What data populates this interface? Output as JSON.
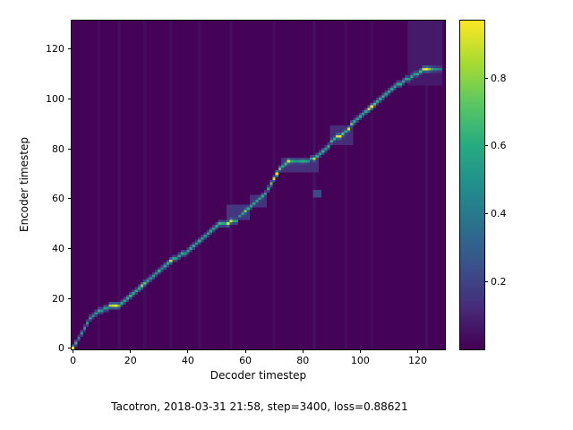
{
  "figure": {
    "background": "#ffffff",
    "caption": "Tacotron, 2018-03-31 21:58, step=3400, loss=0.88621"
  },
  "chart_data": {
    "type": "heatmap",
    "title": "",
    "xlabel": "Decoder timestep",
    "ylabel": "Encoder timestep",
    "x_ticks": [
      0,
      20,
      40,
      60,
      80,
      100,
      120
    ],
    "y_ticks": [
      0,
      20,
      40,
      60,
      80,
      100,
      120
    ],
    "x_range": [
      0,
      129
    ],
    "y_range": [
      0,
      131
    ],
    "grid_cols": 130,
    "grid_rows": 132,
    "value_range": [
      0,
      0.97
    ],
    "colorbar_ticks": [
      0.2,
      0.4,
      0.6,
      0.8
    ],
    "colormap": "viridis",
    "colormap_anchors": [
      "#440154",
      "#472c7a",
      "#3b518b",
      "#2c718e",
      "#21908d",
      "#27ad81",
      "#5cc863",
      "#aadc32",
      "#fde725"
    ],
    "background_value": 0.005,
    "column_streaks": [
      [
        9,
        0.03
      ],
      [
        16,
        0.04
      ],
      [
        25,
        0.03
      ],
      [
        34,
        0.03
      ],
      [
        44,
        0.03
      ],
      [
        55,
        0.04
      ],
      [
        70,
        0.03
      ],
      [
        84,
        0.05
      ],
      [
        95,
        0.03
      ],
      [
        104,
        0.03
      ],
      [
        123,
        0.04
      ]
    ],
    "patches": [
      {
        "x": 117,
        "y": 106,
        "w": 12,
        "h": 26,
        "v": 0.07
      },
      {
        "x": 54,
        "y": 52,
        "w": 8,
        "h": 6,
        "v": 0.16
      },
      {
        "x": 62,
        "y": 57,
        "w": 6,
        "h": 5,
        "v": 0.14
      },
      {
        "x": 84,
        "y": 61,
        "w": 3,
        "h": 3,
        "v": 0.22
      },
      {
        "x": 73,
        "y": 71,
        "w": 13,
        "h": 6,
        "v": 0.13
      },
      {
        "x": 90,
        "y": 82,
        "w": 8,
        "h": 8,
        "v": 0.12
      }
    ],
    "alignment_path": [
      [
        0,
        0,
        0.97
      ],
      [
        1,
        2,
        0.6
      ],
      [
        2,
        4,
        0.45
      ],
      [
        3,
        6,
        0.5
      ],
      [
        4,
        8,
        0.5
      ],
      [
        5,
        10,
        0.55
      ],
      [
        6,
        12,
        0.5
      ],
      [
        7,
        13,
        0.45
      ],
      [
        8,
        14,
        0.5
      ],
      [
        9,
        15,
        0.6
      ],
      [
        10,
        15,
        0.5
      ],
      [
        11,
        16,
        0.55
      ],
      [
        12,
        16,
        0.5
      ],
      [
        13,
        17,
        0.85
      ],
      [
        14,
        17,
        0.9
      ],
      [
        15,
        17,
        0.95
      ],
      [
        16,
        17,
        0.7
      ],
      [
        17,
        18,
        0.6
      ],
      [
        18,
        19,
        0.55
      ],
      [
        19,
        20,
        0.6
      ],
      [
        20,
        21,
        0.65
      ],
      [
        21,
        22,
        0.6
      ],
      [
        22,
        23,
        0.55
      ],
      [
        23,
        24,
        0.6
      ],
      [
        24,
        25,
        0.8
      ],
      [
        25,
        26,
        0.7
      ],
      [
        26,
        27,
        0.55
      ],
      [
        27,
        28,
        0.5
      ],
      [
        28,
        29,
        0.55
      ],
      [
        29,
        30,
        0.5
      ],
      [
        30,
        31,
        0.6
      ],
      [
        31,
        32,
        0.5
      ],
      [
        32,
        33,
        0.55
      ],
      [
        33,
        34,
        0.6
      ],
      [
        34,
        35,
        0.9
      ],
      [
        35,
        36,
        0.6
      ],
      [
        36,
        36,
        0.5
      ],
      [
        37,
        37,
        0.55
      ],
      [
        38,
        38,
        0.6
      ],
      [
        39,
        38,
        0.5
      ],
      [
        40,
        39,
        0.55
      ],
      [
        41,
        40,
        0.6
      ],
      [
        42,
        41,
        0.55
      ],
      [
        43,
        42,
        0.5
      ],
      [
        44,
        43,
        0.6
      ],
      [
        45,
        44,
        0.55
      ],
      [
        46,
        45,
        0.5
      ],
      [
        47,
        46,
        0.55
      ],
      [
        48,
        47,
        0.6
      ],
      [
        49,
        48,
        0.55
      ],
      [
        50,
        49,
        0.6
      ],
      [
        51,
        50,
        0.65
      ],
      [
        52,
        50,
        0.6
      ],
      [
        53,
        50,
        0.55
      ],
      [
        54,
        50,
        0.9
      ],
      [
        55,
        51,
        0.95
      ],
      [
        56,
        51,
        0.6
      ],
      [
        57,
        51,
        0.55
      ],
      [
        58,
        53,
        0.5
      ],
      [
        59,
        54,
        0.55
      ],
      [
        60,
        55,
        0.8
      ],
      [
        61,
        56,
        0.6
      ],
      [
        62,
        57,
        0.55
      ],
      [
        63,
        58,
        0.6
      ],
      [
        64,
        59,
        0.55
      ],
      [
        65,
        60,
        0.6
      ],
      [
        66,
        61,
        0.6
      ],
      [
        67,
        62,
        0.55
      ],
      [
        68,
        64,
        0.6
      ],
      [
        69,
        66,
        0.7
      ],
      [
        70,
        68,
        0.9
      ],
      [
        71,
        70,
        0.95
      ],
      [
        72,
        72,
        0.7
      ],
      [
        73,
        73,
        0.6
      ],
      [
        74,
        74,
        0.65
      ],
      [
        75,
        75,
        0.9
      ],
      [
        76,
        75,
        0.6
      ],
      [
        77,
        75,
        0.55
      ],
      [
        78,
        75,
        0.5
      ],
      [
        79,
        75,
        0.55
      ],
      [
        80,
        75,
        0.6
      ],
      [
        81,
        75,
        0.55
      ],
      [
        82,
        75,
        0.5
      ],
      [
        83,
        76,
        0.55
      ],
      [
        84,
        76,
        0.9
      ],
      [
        85,
        77,
        0.6
      ],
      [
        86,
        78,
        0.55
      ],
      [
        87,
        79,
        0.6
      ],
      [
        88,
        80,
        0.55
      ],
      [
        89,
        81,
        0.6
      ],
      [
        90,
        83,
        0.65
      ],
      [
        91,
        84,
        0.6
      ],
      [
        92,
        85,
        0.9
      ],
      [
        93,
        85,
        0.95
      ],
      [
        94,
        86,
        0.7
      ],
      [
        95,
        87,
        0.6
      ],
      [
        96,
        88,
        0.9
      ],
      [
        97,
        90,
        0.7
      ],
      [
        98,
        91,
        0.6
      ],
      [
        99,
        92,
        0.55
      ],
      [
        100,
        93,
        0.6
      ],
      [
        101,
        94,
        0.55
      ],
      [
        102,
        95,
        0.6
      ],
      [
        103,
        96,
        0.9
      ],
      [
        104,
        97,
        0.95
      ],
      [
        105,
        98,
        0.7
      ],
      [
        106,
        99,
        0.6
      ],
      [
        107,
        100,
        0.55
      ],
      [
        108,
        101,
        0.6
      ],
      [
        109,
        102,
        0.55
      ],
      [
        110,
        103,
        0.6
      ],
      [
        111,
        104,
        0.55
      ],
      [
        112,
        105,
        0.6
      ],
      [
        113,
        106,
        0.55
      ],
      [
        114,
        106,
        0.6
      ],
      [
        115,
        107,
        0.55
      ],
      [
        116,
        108,
        0.6
      ],
      [
        117,
        108,
        0.55
      ],
      [
        118,
        109,
        0.6
      ],
      [
        119,
        110,
        0.55
      ],
      [
        120,
        110,
        0.6
      ],
      [
        121,
        111,
        0.65
      ],
      [
        122,
        112,
        0.9
      ],
      [
        123,
        112,
        0.97
      ],
      [
        124,
        112,
        0.8
      ],
      [
        125,
        112,
        0.6
      ],
      [
        126,
        112,
        0.5
      ],
      [
        127,
        112,
        0.45
      ],
      [
        128,
        112,
        0.4
      ]
    ]
  }
}
